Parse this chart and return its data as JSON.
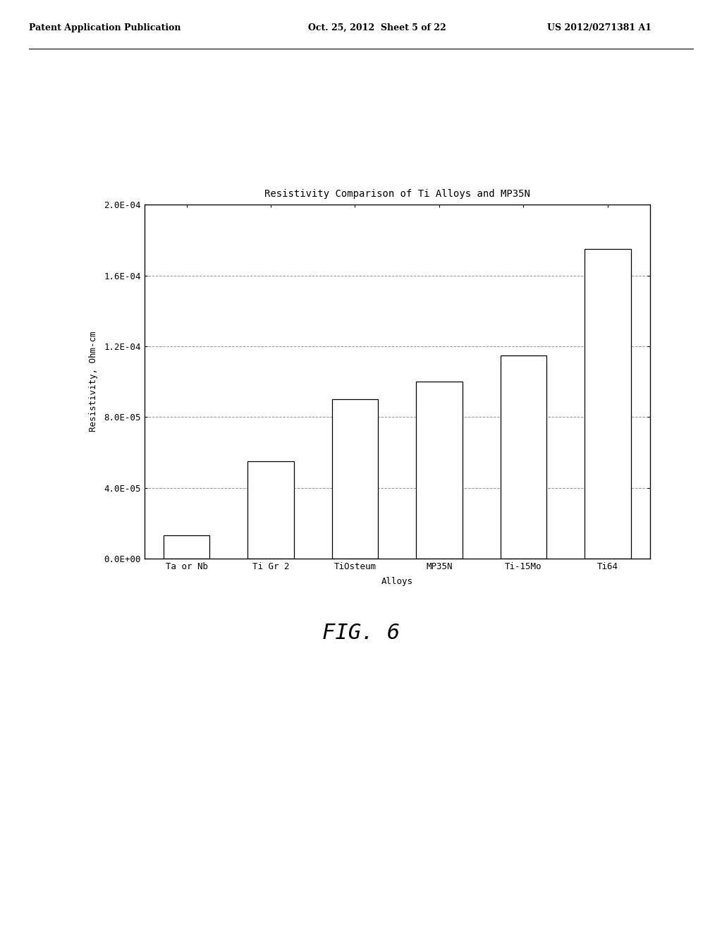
{
  "title": "Resistivity Comparison of Ti Alloys and MP35N",
  "xlabel": "Alloys",
  "ylabel": "Resistivity, Ohm-cm",
  "categories": [
    "Ta or Nb",
    "Ti Gr 2",
    "TiOsteum",
    "MP35N",
    "Ti-15Mo",
    "Ti64"
  ],
  "values": [
    1.3e-05,
    5.5e-05,
    9e-05,
    0.0001,
    0.000115,
    0.000175
  ],
  "ylim": [
    0,
    0.0002
  ],
  "yticks": [
    0.0,
    4e-05,
    8e-05,
    0.00012,
    0.00016,
    0.0002
  ],
  "yticklabels": [
    "0.0E+00",
    "4.0E-05",
    "8.0E-05",
    "1.2E-04",
    "1.6E-04",
    "2.0E-04"
  ],
  "bar_color": "#ffffff",
  "bar_edge_color": "#000000",
  "grid_color": "#888888",
  "bg_color": "#ffffff",
  "header_left": "Patent Application Publication",
  "header_center": "Oct. 25, 2012  Sheet 5 of 22",
  "header_right": "US 2012/0271381 A1",
  "fig_label": "FIG. 6",
  "title_fontsize": 10,
  "axis_label_fontsize": 9,
  "tick_fontsize": 9,
  "header_fontsize": 9,
  "fig_label_fontsize": 22
}
